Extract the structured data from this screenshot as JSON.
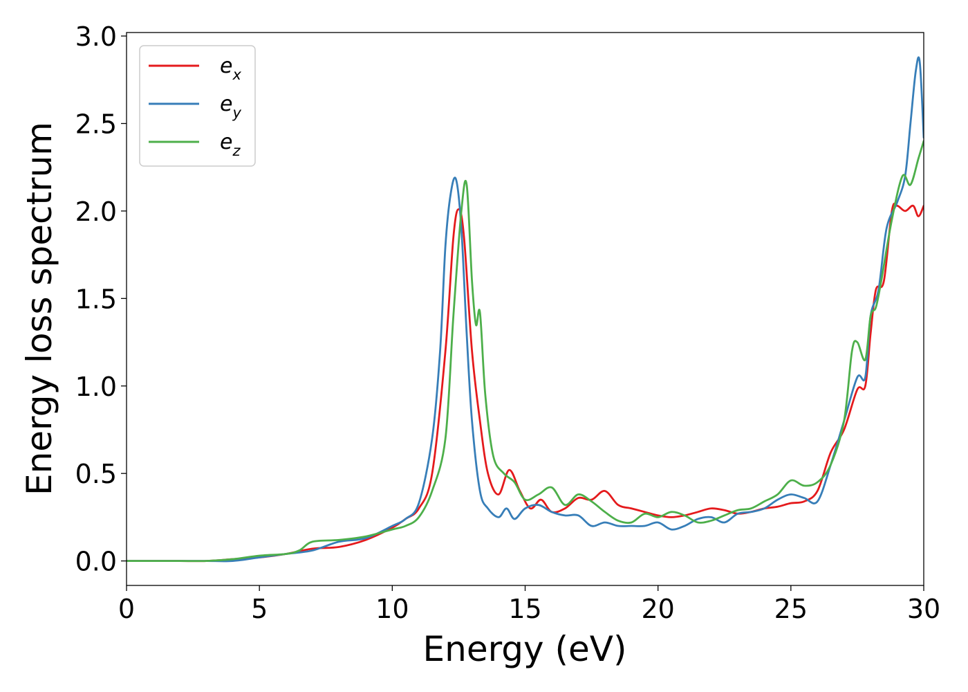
{
  "chart_data": {
    "type": "line",
    "xlabel": "Energy (eV)",
    "ylabel": "Energy loss spectrum",
    "xlim": [
      0,
      30
    ],
    "ylim": [
      -0.14,
      3.02
    ],
    "xticks": [
      0,
      5,
      10,
      15,
      20,
      25,
      30
    ],
    "yticks": [
      0.0,
      0.5,
      1.0,
      1.5,
      2.0,
      2.5,
      3.0
    ],
    "xtick_labels": [
      "0",
      "5",
      "10",
      "15",
      "20",
      "25",
      "30"
    ],
    "ytick_labels": [
      "0.0",
      "0.5",
      "1.0",
      "1.5",
      "2.0",
      "2.5",
      "3.0"
    ],
    "grid": false,
    "legend_position": "top-left",
    "series": [
      {
        "name": "e_x",
        "base": "e",
        "sub": "x",
        "color": "#e41a1c",
        "x": [
          0,
          2,
          3,
          4,
          5,
          6,
          7,
          8,
          9,
          10,
          10.5,
          11,
          11.5,
          12,
          12.3,
          12.5,
          12.7,
          13,
          13.3,
          13.6,
          14,
          14.4,
          14.8,
          15.2,
          15.6,
          16,
          16.5,
          17,
          17.5,
          18,
          18.5,
          19,
          19.5,
          20,
          20.5,
          21,
          21.5,
          22,
          22.5,
          23,
          23.5,
          24,
          24.5,
          25,
          25.5,
          26,
          26.5,
          27,
          27.5,
          27.8,
          28,
          28.2,
          28.5,
          28.8,
          29,
          29.3,
          29.6,
          29.8,
          30
        ],
        "y": [
          0.0,
          0.0,
          0.0,
          0.01,
          0.02,
          0.04,
          0.07,
          0.08,
          0.12,
          0.19,
          0.24,
          0.3,
          0.5,
          1.2,
          1.85,
          2.01,
          1.85,
          1.2,
          0.8,
          0.5,
          0.38,
          0.52,
          0.4,
          0.3,
          0.35,
          0.28,
          0.3,
          0.36,
          0.35,
          0.4,
          0.32,
          0.3,
          0.28,
          0.26,
          0.25,
          0.26,
          0.28,
          0.3,
          0.29,
          0.27,
          0.28,
          0.3,
          0.31,
          0.33,
          0.34,
          0.4,
          0.62,
          0.75,
          0.98,
          1.0,
          1.3,
          1.55,
          1.6,
          2.0,
          2.03,
          2.0,
          2.03,
          1.97,
          2.03
        ]
      },
      {
        "name": "e_y",
        "base": "e",
        "sub": "y",
        "color": "#377eb8",
        "x": [
          0,
          2,
          3,
          4,
          5,
          6,
          7,
          8,
          9,
          10,
          10.5,
          11,
          11.5,
          11.8,
          12,
          12.2,
          12.4,
          12.6,
          12.8,
          13,
          13.3,
          13.6,
          14,
          14.3,
          14.6,
          15,
          15.5,
          16,
          16.5,
          17,
          17.5,
          18,
          18.5,
          19,
          19.5,
          20,
          20.5,
          21,
          21.5,
          22,
          22.5,
          23,
          23.5,
          24,
          24.5,
          25,
          25.5,
          26,
          26.5,
          27,
          27.5,
          27.8,
          28,
          28.3,
          28.6,
          29,
          29.3,
          29.5,
          29.7,
          29.85,
          30
        ],
        "y": [
          0.0,
          0.0,
          0.0,
          0.0,
          0.02,
          0.04,
          0.06,
          0.11,
          0.13,
          0.2,
          0.24,
          0.33,
          0.7,
          1.2,
          1.8,
          2.1,
          2.18,
          1.9,
          1.3,
          0.8,
          0.4,
          0.3,
          0.25,
          0.3,
          0.24,
          0.3,
          0.32,
          0.28,
          0.26,
          0.26,
          0.2,
          0.22,
          0.2,
          0.2,
          0.2,
          0.22,
          0.18,
          0.2,
          0.24,
          0.25,
          0.22,
          0.27,
          0.28,
          0.3,
          0.35,
          0.38,
          0.36,
          0.34,
          0.55,
          0.8,
          1.05,
          1.05,
          1.4,
          1.55,
          1.9,
          2.05,
          2.2,
          2.5,
          2.8,
          2.85,
          2.42
        ]
      },
      {
        "name": "e_z",
        "base": "e",
        "sub": "z",
        "color": "#4daf4a",
        "x": [
          0,
          2,
          3,
          4,
          5,
          6,
          6.5,
          7,
          8,
          9,
          10,
          10.5,
          11,
          11.5,
          12,
          12.3,
          12.6,
          12.8,
          13,
          13.15,
          13.3,
          13.5,
          13.8,
          14.2,
          14.6,
          15,
          15.5,
          16,
          16.5,
          17,
          17.5,
          18,
          18.5,
          19,
          19.5,
          20,
          20.5,
          21,
          21.5,
          22,
          22.5,
          23,
          23.5,
          24,
          24.5,
          25,
          25.5,
          26,
          26.5,
          27,
          27.3,
          27.5,
          27.8,
          28,
          28.2,
          28.4,
          28.8,
          29.2,
          29.5,
          29.8,
          30
        ],
        "y": [
          0.0,
          0.0,
          0.0,
          0.01,
          0.03,
          0.04,
          0.06,
          0.11,
          0.12,
          0.14,
          0.18,
          0.2,
          0.25,
          0.4,
          0.7,
          1.4,
          2.0,
          2.15,
          1.6,
          1.35,
          1.42,
          0.95,
          0.6,
          0.5,
          0.45,
          0.35,
          0.38,
          0.42,
          0.32,
          0.38,
          0.34,
          0.28,
          0.23,
          0.22,
          0.27,
          0.25,
          0.28,
          0.26,
          0.22,
          0.23,
          0.26,
          0.29,
          0.3,
          0.34,
          0.38,
          0.46,
          0.43,
          0.45,
          0.55,
          0.8,
          1.2,
          1.25,
          1.15,
          1.4,
          1.45,
          1.6,
          1.95,
          2.2,
          2.15,
          2.3,
          2.4
        ]
      }
    ]
  }
}
